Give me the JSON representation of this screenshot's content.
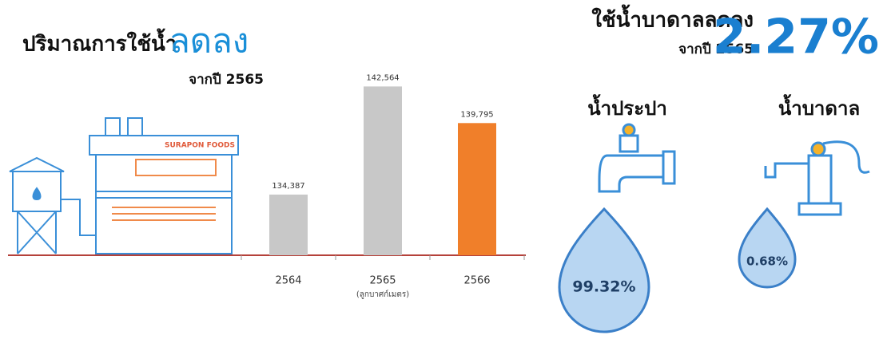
{
  "heading": {
    "title": "ปริมาณการใช้น้ำ",
    "highlight": "ลดลง",
    "subtitle": "จากปี 2565"
  },
  "summary": {
    "title": "ใช้น้ำบาดาลลดลง",
    "subtitle": "จากปี 2565",
    "value": "2.27%"
  },
  "company": "SURAPON FOODS",
  "sources": [
    {
      "name": "น้ำประปา",
      "share": "99.32%"
    },
    {
      "name": "น้ำบาดาล",
      "share": "0.68%"
    }
  ],
  "chart_data": {
    "type": "bar",
    "categories": [
      "2564",
      "2565",
      "2566"
    ],
    "unit_label": "(ลูกบาศก์เมตร)",
    "values": [
      134387,
      142564,
      139795
    ],
    "value_labels": [
      "134,387",
      "142,564",
      "139,795"
    ],
    "colors": [
      "#c8c8c8",
      "#c8c8c8",
      "#f07f2a"
    ],
    "ylim": [
      129800,
      145000
    ]
  }
}
